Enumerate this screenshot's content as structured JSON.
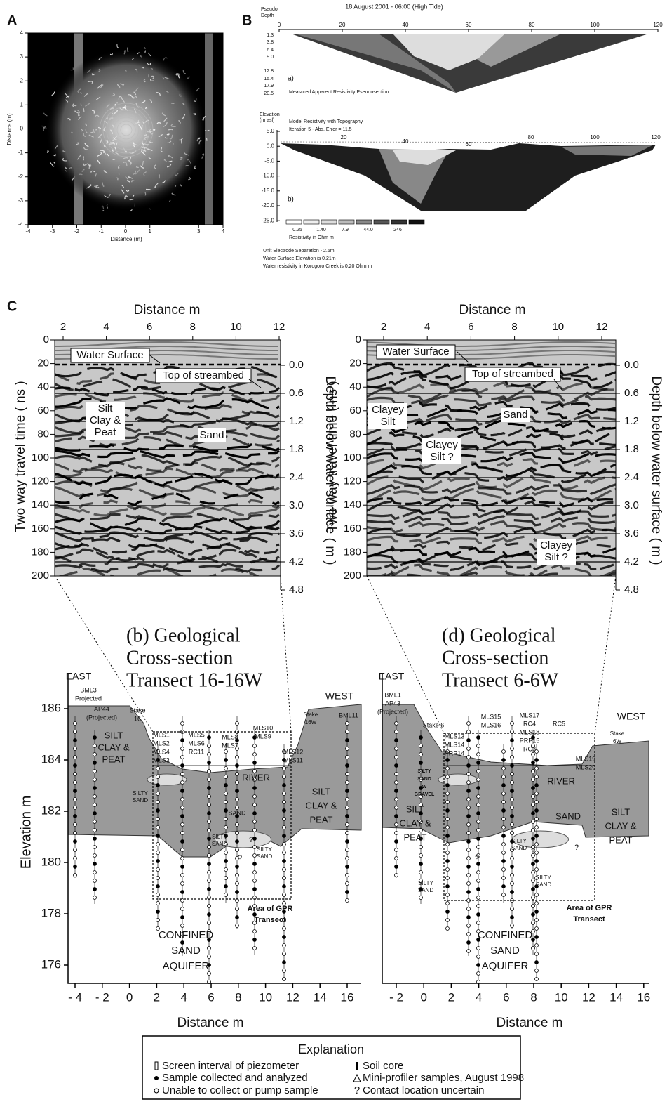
{
  "panel_a": {
    "label": "A",
    "x_title": "Distance (m)",
    "y_title": "Distance (m)",
    "x_ticks": [
      "-4",
      "-3",
      "-2",
      "-1",
      "0",
      "1",
      "3",
      "4"
    ],
    "y_ticks": [
      "4",
      "3",
      "2",
      "1",
      "0",
      "-1",
      "-2",
      "-3",
      "-4"
    ]
  },
  "panel_b": {
    "label": "B",
    "title": "18 August 2001 - 06:00  (High Tide)",
    "pseudo_depth_title": [
      "Pseudo",
      "Depth"
    ],
    "top_ticks": [
      "0",
      "20",
      "40",
      "60",
      "80",
      "100",
      "120"
    ],
    "pseudo_depth_ticks": [
      "1.3",
      "3.8",
      "6.4",
      "9.0",
      "12.8",
      "15.4",
      "17.9",
      "20.5"
    ],
    "section_a_tag": "a)",
    "section_a_caption": "Measured Apparent Resistivity Pseudosection",
    "elevation_title": [
      "Elevation",
      "(m asl)"
    ],
    "section_b_caption": [
      "Model Resistivity with Topography",
      "Iteration 5 - Abs. Error = 11.5"
    ],
    "elevation_ticks": [
      "5.0",
      "0.0",
      "-5.0",
      "-10.0",
      "-15.0",
      "-20.0",
      "-25.0"
    ],
    "section_b_ticks": [
      "20",
      "40",
      "60",
      "80",
      "100",
      "120"
    ],
    "section_b_tag": "b)",
    "legend_values": [
      "0.25",
      "1.40",
      "7.9",
      "44.0",
      "246"
    ],
    "legend_title": "Resistivity in Ohm m",
    "notes": [
      "Unit Electrode Separation - 2.5m",
      "Water Surface Elevation is 0.21m",
      "Water resistivity in Korogoro Creek is 0.20 Ohm m"
    ]
  },
  "panel_c": {
    "label": "C",
    "radargrams": [
      {
        "x_title": "Distance m",
        "x_ticks": [
          "2",
          "4",
          "6",
          "8",
          "10",
          "12"
        ],
        "y_title": "Two way travel time ( ns )",
        "y_ticks": [
          "0",
          "20",
          "40",
          "60",
          "80",
          "100",
          "120",
          "140",
          "160",
          "180",
          "200"
        ],
        "depth_title": "Depth below water surface ( m )",
        "depth_ticks": [
          "0.0",
          "0.6",
          "1.2",
          "1.8",
          "2.4",
          "3.0",
          "3.6",
          "4.2",
          "4.8"
        ],
        "annotations": [
          [
            "Water Surface"
          ],
          [
            "Top of streambed"
          ],
          [
            "Silt",
            "Clay &",
            "Peat"
          ],
          [
            "Sand"
          ]
        ]
      },
      {
        "x_title": "Distance m",
        "x_ticks": [
          "2",
          "4",
          "6",
          "8",
          "10",
          "12"
        ],
        "y_title": "Two way travel time ( ns )",
        "y_ticks": [
          "0",
          "20",
          "40",
          "60",
          "80",
          "100",
          "120",
          "140",
          "160",
          "180",
          "200"
        ],
        "depth_title": "Depth below water surface ( m )",
        "depth_ticks": [
          "0.0",
          "0.6",
          "1.2",
          "1.8",
          "2.4",
          "3.0",
          "3.6",
          "4.2",
          "4.8"
        ],
        "annotations": [
          [
            "Water Surface"
          ],
          [
            "Top of streambed"
          ],
          [
            "Clayey",
            "Silt"
          ],
          [
            "Sand"
          ],
          [
            "Clayey",
            "Silt ?"
          ],
          [
            "Clayey",
            "Silt ?"
          ]
        ]
      }
    ]
  },
  "cross_sections": [
    {
      "title": [
        "(b) Geological",
        "Cross-section",
        "Transect 16-16W"
      ],
      "y_title": "Elevation m",
      "y_ticks": [
        "186",
        "184",
        "182",
        "180",
        "178",
        "176"
      ],
      "x_title": "Distance m",
      "x_ticks": [
        "- 4",
        "- 2",
        "0",
        "2",
        "4",
        "6",
        "8",
        "10",
        "12",
        "14",
        "16"
      ],
      "labels": [
        [
          "EAST"
        ],
        [
          "WEST"
        ],
        [
          "BML3",
          "Projected"
        ],
        [
          "AP44",
          "(Projected)"
        ],
        [
          "Stake",
          "16"
        ],
        [
          "MLS1",
          "MLS2",
          "MLS4",
          "MLS3"
        ],
        [
          "MLS5",
          "MLS6",
          "RC11"
        ],
        [
          "MLS8",
          "MLS7"
        ],
        [
          "MLS10",
          "MLS9"
        ],
        [
          "MLS12",
          "MLS11"
        ],
        [
          "Stake",
          "16W"
        ],
        [
          "BML11"
        ],
        [
          "SILT",
          "CLAY &",
          "PEAT"
        ],
        [
          "SILTY",
          "SAND"
        ],
        [
          "RIVER"
        ],
        [
          "SAND"
        ],
        [
          "SILTY",
          "SAND"
        ],
        [
          "SILTY",
          "SAND"
        ],
        [
          "SILT",
          "CLAY &",
          "PEAT"
        ],
        [
          "Area of GPR",
          "Transect"
        ],
        [
          "CONFINED",
          "SAND",
          "AQUIFER"
        ],
        [
          "?"
        ],
        [
          "?"
        ]
      ]
    },
    {
      "title": [
        "(d) Geological",
        "Cross-section",
        "Transect 6-6W"
      ],
      "x_title": "Distance m",
      "x_ticks": [
        "- 2",
        "0",
        "2",
        "4",
        "6",
        "8",
        "10",
        "12",
        "14",
        "16"
      ],
      "labels": [
        [
          "EAST"
        ],
        [
          "WEST"
        ],
        [
          "BML1",
          "AP43",
          "(Projected)"
        ],
        [
          "Stake 6"
        ],
        [
          "MLS13",
          "MLS14",
          "PRP14"
        ],
        [
          "MLS15",
          "MLS16"
        ],
        [
          "MLS17",
          "RC4",
          "MLS18",
          "PRP15",
          "RC3"
        ],
        [
          "RC5"
        ],
        [
          "Stake",
          "6W"
        ],
        [
          "MLS19",
          "MLS20"
        ],
        [
          "SILTY",
          "SAND",
          "W",
          "GRAVEL"
        ],
        [
          "RIVER"
        ],
        [
          "SILT",
          "CLAY &",
          "PEAT"
        ],
        [
          "SAND"
        ],
        [
          "SILTY",
          "SAND"
        ],
        [
          "SILT",
          "CLAY &",
          "PEAT"
        ],
        [
          "SILTY",
          "SAND"
        ],
        [
          "SILTY",
          "SAND"
        ],
        [
          "Area of GPR",
          "Transect"
        ],
        [
          "CONFINED",
          "SAND",
          "AQUIFER"
        ],
        [
          "?"
        ],
        [
          "?"
        ],
        [
          "?"
        ]
      ]
    }
  ],
  "explanation": {
    "title": "Explanation",
    "items": [
      "Screen interval of piezometer",
      "Sample collected and analyzed",
      "Unable to collect or pump sample",
      "Soil core",
      "Mini-profiler samples, August 1998",
      "Contact location uncertain"
    ]
  }
}
